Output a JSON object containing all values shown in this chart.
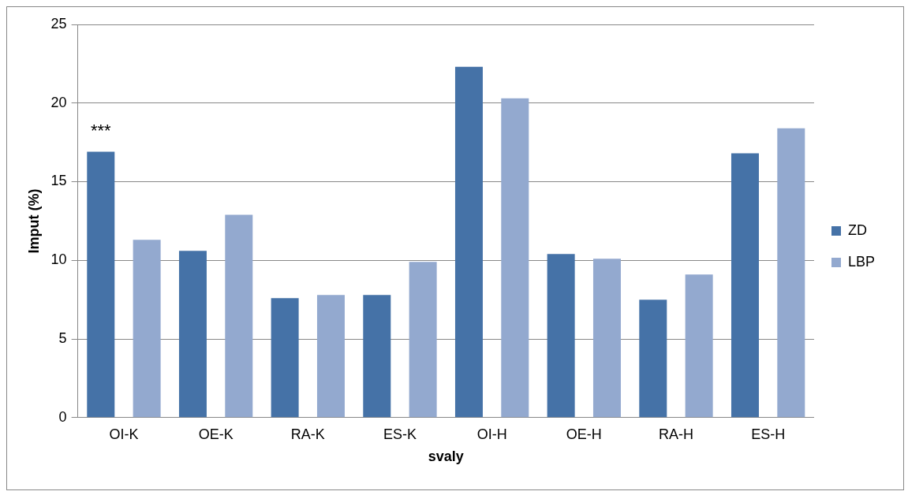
{
  "chart_data": {
    "type": "bar",
    "xlabel": "svaly",
    "ylabel": "Imput (%)",
    "categories": [
      "OI-K",
      "OE-K",
      "RA-K",
      "ES-K",
      "OI-H",
      "OE-H",
      "RA-H",
      "ES-H"
    ],
    "series": [
      {
        "name": "ZD",
        "color": "#4572a7",
        "values": [
          16.9,
          10.6,
          7.6,
          7.8,
          22.3,
          10.4,
          7.5,
          16.8
        ]
      },
      {
        "name": "LBP",
        "color": "#93a9cf",
        "values": [
          11.3,
          12.9,
          7.8,
          9.9,
          20.3,
          10.1,
          9.1,
          18.4
        ]
      }
    ],
    "ylim": [
      0,
      25
    ],
    "yticks": [
      0,
      5,
      10,
      15,
      20,
      25
    ],
    "grid": "y",
    "legend": "right",
    "annotations": [
      "***"
    ]
  }
}
